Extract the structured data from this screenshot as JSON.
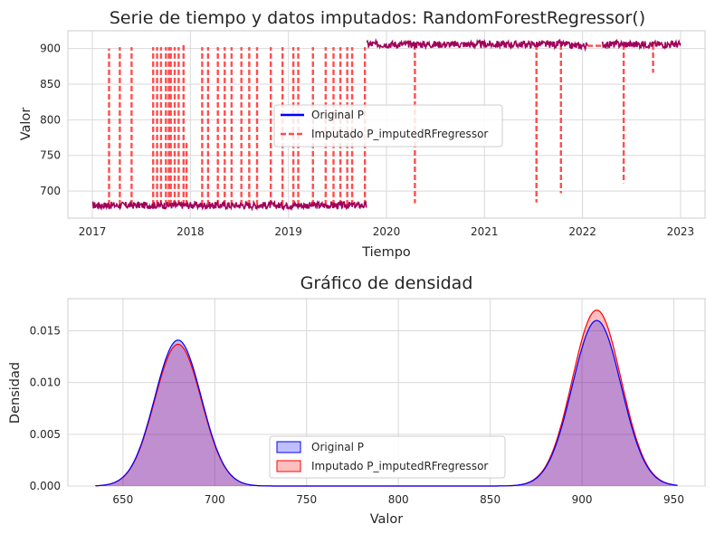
{
  "chart_data": [
    {
      "type": "line",
      "title": "Serie de tiempo y datos imputados: RandomForestRegressor()",
      "xlabel": "Tiempo",
      "ylabel": "Valor",
      "xlim": [
        2016.75,
        2023.25
      ],
      "ylim": [
        662,
        925
      ],
      "x_ticks": [
        2017,
        2018,
        2019,
        2020,
        2021,
        2022,
        2023
      ],
      "y_ticks": [
        700,
        750,
        800,
        850,
        900
      ],
      "grid": true,
      "legend_position": "center",
      "colors": {
        "original": "#0000ff",
        "imputed": "#ff4d4d",
        "overlap": "#a0005a"
      },
      "series": [
        {
          "name": "Original P",
          "style": "solid",
          "segments": [
            {
              "x": [
                2017.0,
                2019.8
              ],
              "level": 680
            },
            {
              "x": [
                2019.8,
                2021.85
              ],
              "level": 906
            },
            {
              "x": [
                2021.85,
                2022.05
              ],
              "level": 904
            },
            {
              "x": [
                2022.2,
                2023.0
              ],
              "level": 906
            }
          ]
        },
        {
          "name": "Imputado P_imputedRFregressor",
          "style": "dashed",
          "spikes": [
            {
              "x": 2017.17,
              "to": 900
            },
            {
              "x": 2017.28,
              "to": 902
            },
            {
              "x": 2017.4,
              "to": 902
            },
            {
              "x": 2017.62,
              "to": 902
            },
            {
              "x": 2017.66,
              "to": 902
            },
            {
              "x": 2017.7,
              "to": 902
            },
            {
              "x": 2017.75,
              "to": 902
            },
            {
              "x": 2017.78,
              "to": 902
            },
            {
              "x": 2017.8,
              "to": 902
            },
            {
              "x": 2017.84,
              "to": 902
            },
            {
              "x": 2017.88,
              "to": 902
            },
            {
              "x": 2017.93,
              "to": 908
            },
            {
              "x": 2017.96,
              "to": 770
            },
            {
              "x": 2018.12,
              "to": 902
            },
            {
              "x": 2018.18,
              "to": 902
            },
            {
              "x": 2018.28,
              "to": 902
            },
            {
              "x": 2018.35,
              "to": 902
            },
            {
              "x": 2018.42,
              "to": 902
            },
            {
              "x": 2018.52,
              "to": 902
            },
            {
              "x": 2018.6,
              "to": 902
            },
            {
              "x": 2018.68,
              "to": 902
            },
            {
              "x": 2018.82,
              "to": 902
            },
            {
              "x": 2018.94,
              "to": 902
            },
            {
              "x": 2019.05,
              "to": 902
            },
            {
              "x": 2019.1,
              "to": 902
            },
            {
              "x": 2019.25,
              "to": 902
            },
            {
              "x": 2019.38,
              "to": 902
            },
            {
              "x": 2019.46,
              "to": 902
            },
            {
              "x": 2019.53,
              "to": 902
            },
            {
              "x": 2019.6,
              "to": 902
            },
            {
              "x": 2019.65,
              "to": 902
            },
            {
              "x": 2019.78,
              "to": 902
            },
            {
              "x": 2020.29,
              "to": 683
            },
            {
              "x": 2021.53,
              "to": 684
            },
            {
              "x": 2021.78,
              "to": 697
            },
            {
              "x": 2022.42,
              "to": 711
            },
            {
              "x": 2022.72,
              "to": 866
            }
          ]
        }
      ]
    },
    {
      "type": "area",
      "title": "Gráfico de densidad",
      "xlabel": "Valor",
      "ylabel": "Densidad",
      "xlim": [
        620,
        967
      ],
      "ylim": [
        0,
        0.0181
      ],
      "x_ticks": [
        650,
        700,
        750,
        800,
        850,
        900,
        950
      ],
      "y_ticks": [
        "0.000",
        "0.005",
        "0.010",
        "0.015"
      ],
      "y_tick_values": [
        0,
        0.005,
        0.01,
        0.015
      ],
      "grid": true,
      "legend_position": "lower center",
      "support": [
        635,
        952
      ],
      "colors": {
        "original": "#0000ff",
        "imputed": "#ff0000",
        "overlap": "#cc8fbf"
      },
      "series": [
        {
          "name": "Original P",
          "peaks": [
            {
              "mean": 680,
              "sd": 12.7,
              "height": 0.0141
            },
            {
              "mean": 908,
              "sd": 13.3,
              "height": 0.016
            }
          ]
        },
        {
          "name": "Imputado P_imputedRFregressor",
          "peaks": [
            {
              "mean": 680,
              "sd": 12.7,
              "height": 0.0137
            },
            {
              "mean": 908,
              "sd": 13.3,
              "height": 0.017
            }
          ]
        }
      ]
    }
  ]
}
